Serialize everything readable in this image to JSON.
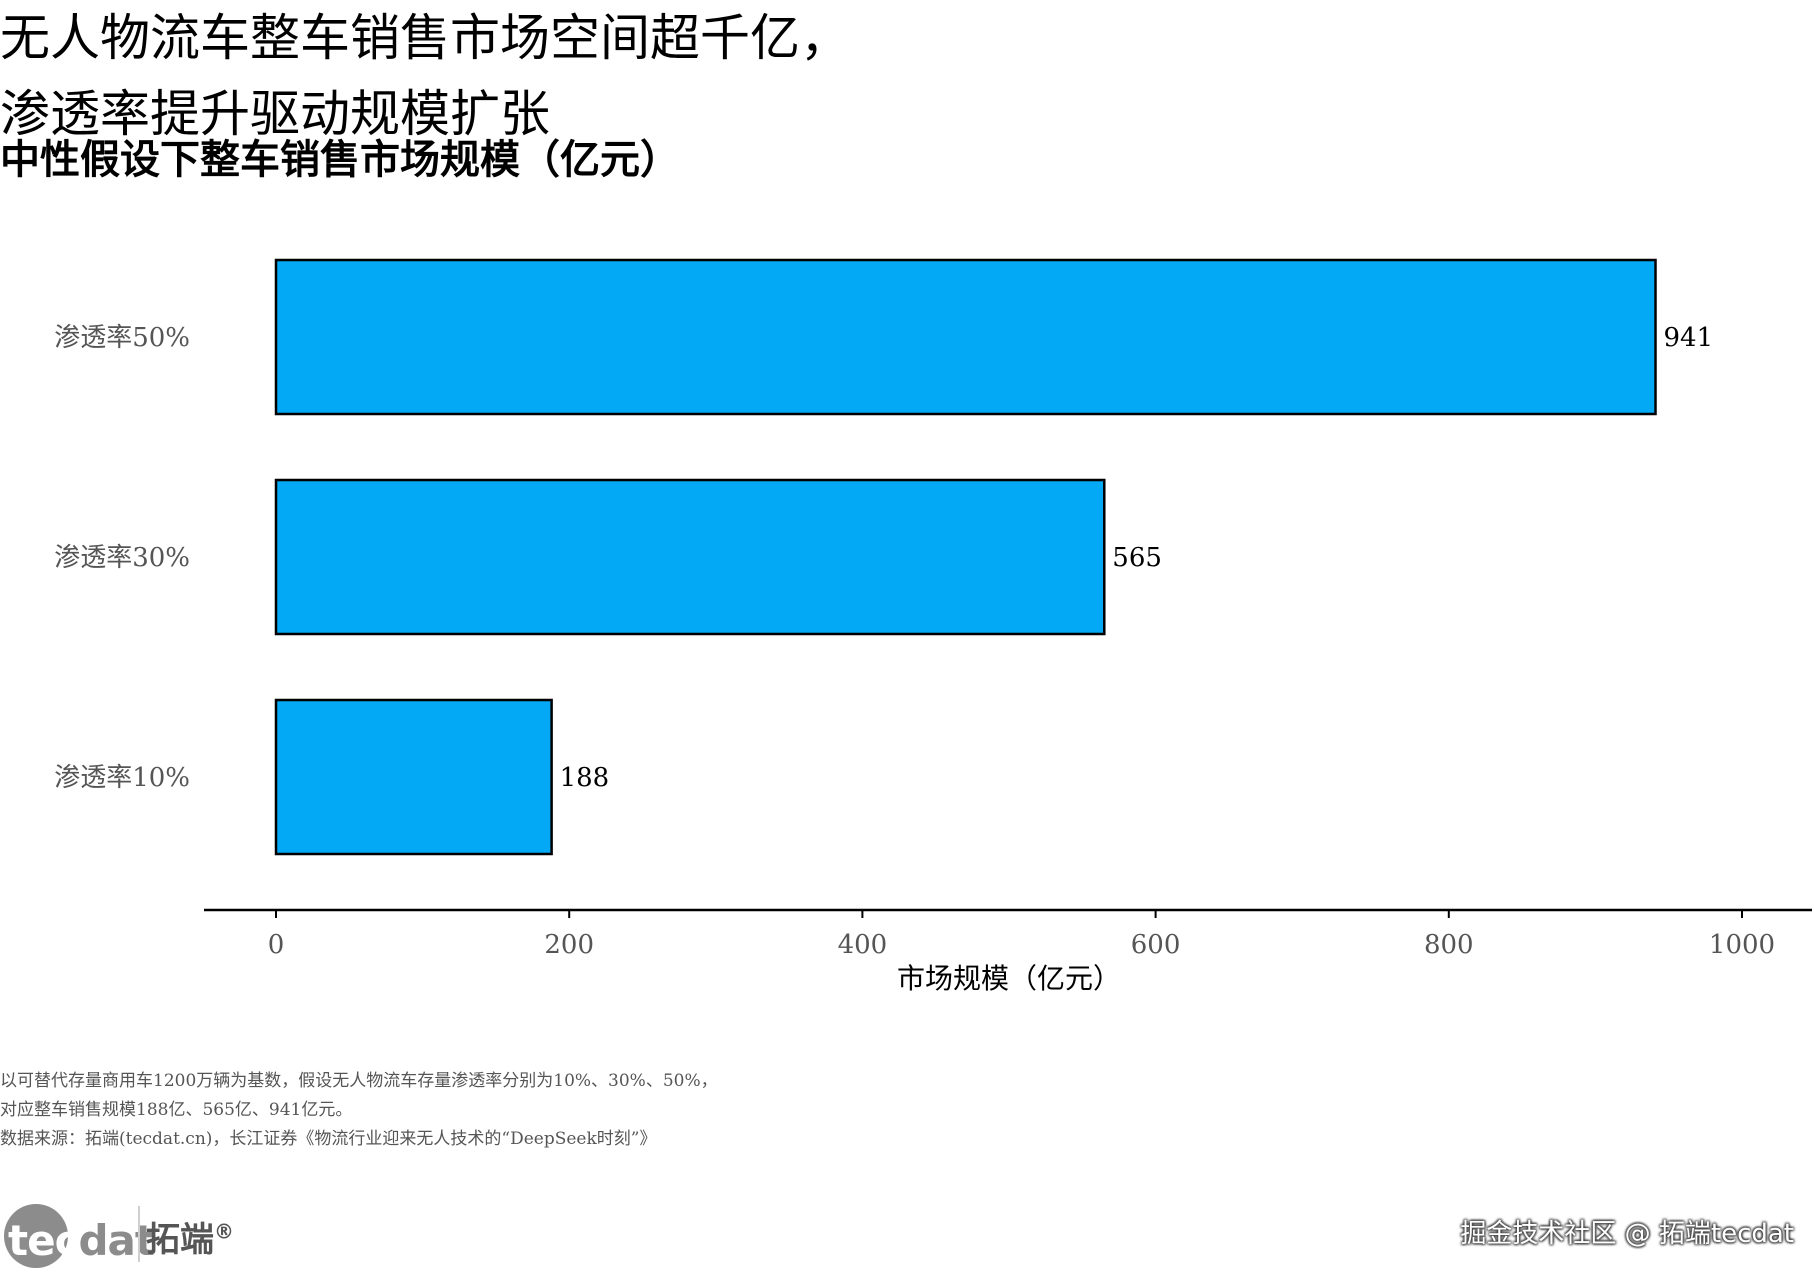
{
  "title_lines": [
    "无人物流车整车销售市场空间超千亿，",
    "渗透率提升驱动规模扩张"
  ],
  "subtitle": "中性假设下整车销售市场规模（亿元）",
  "chart_data": {
    "type": "bar",
    "orientation": "horizontal",
    "categories": [
      "渗透率50%",
      "渗透率30%",
      "渗透率10%"
    ],
    "values": [
      941,
      565,
      188
    ],
    "data_labels": [
      "941",
      "565",
      "188"
    ],
    "xlabel": "市场规模（亿元）",
    "ylabel": "",
    "xlim": [
      0,
      1000
    ],
    "xticks": [
      0,
      200,
      400,
      600,
      800,
      1000
    ],
    "xtick_labels": [
      "0",
      "200",
      "400",
      "600",
      "800",
      "1000"
    ],
    "grid": false,
    "bar_color": "#03a9f4",
    "bar_edge_color": "#000000"
  },
  "notes": [
    "以可替代存量商用车1200万辆为基数，假设无人物流车存量渗透率分别为10%、30%、50%，",
    "对应整车销售规模188亿、565亿、941亿元。",
    "数据来源：拓端(tecdat.cn)，长江证券《物流行业迎来无人技术的“DeepSeek时刻”》"
  ],
  "logo": {
    "text_a": "tec",
    "text_b": "dat",
    "cn": "拓端",
    "reg": "®"
  },
  "watermark": "掘金技术社区 @ 拓端tecdat"
}
